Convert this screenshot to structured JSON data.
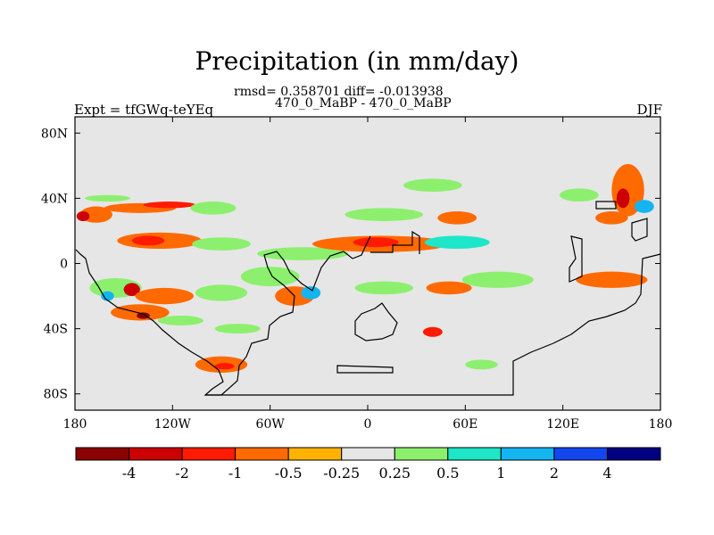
{
  "chart_data": {
    "type": "heatmap",
    "title": "Precipitation (in mm/day)",
    "subtitle": "rmsd= 0.358701 diff= -0.013938",
    "center_string": "470_0_MaBP - 470_0_MaBP",
    "left_string": "Expt = tfGWq-teYEq",
    "right_string": "DJF",
    "x_ticks": [
      "180",
      "120W",
      "60W",
      "0",
      "60E",
      "120E",
      "180"
    ],
    "x_tick_values": [
      -180,
      -120,
      -60,
      0,
      60,
      120,
      180
    ],
    "y_ticks": [
      "80N",
      "40N",
      "0",
      "40S",
      "80S"
    ],
    "y_tick_values": [
      80,
      40,
      0,
      -40,
      -80
    ],
    "xlim": [
      -180,
      180
    ],
    "ylim": [
      -90,
      90
    ],
    "colorbar": {
      "labels": [
        "-4",
        "-2",
        "-1",
        "-0.5",
        "-0.25",
        "0.25",
        "0.5",
        "1",
        "2",
        "4"
      ],
      "colors": [
        "#8b0000",
        "#cc0000",
        "#ff1a00",
        "#ff6a00",
        "#ffb300",
        "#e6e6e6",
        "#8cf06e",
        "#1ee6c8",
        "#14b4f0",
        "#1446f0",
        "#000080"
      ]
    },
    "blobs": [
      {
        "lon": -140,
        "lat": 34,
        "rx": 22,
        "ry": 3,
        "level": "-0.5"
      },
      {
        "lon": -122,
        "lat": 36,
        "rx": 16,
        "ry": 2,
        "level": "-1"
      },
      {
        "lon": -167,
        "lat": 30,
        "rx": 10,
        "ry": 5,
        "level": "-0.5"
      },
      {
        "lon": -175,
        "lat": 29,
        "rx": 4,
        "ry": 3,
        "level": "-2"
      },
      {
        "lon": -95,
        "lat": 34,
        "rx": 14,
        "ry": 4,
        "level": "0.25"
      },
      {
        "lon": -160,
        "lat": 40,
        "rx": 14,
        "ry": 2,
        "level": "0.25"
      },
      {
        "lon": -128,
        "lat": 14,
        "rx": 26,
        "ry": 5,
        "level": "-0.5"
      },
      {
        "lon": -135,
        "lat": 14,
        "rx": 10,
        "ry": 3,
        "level": "-1"
      },
      {
        "lon": -90,
        "lat": 12,
        "rx": 18,
        "ry": 4,
        "level": "0.25"
      },
      {
        "lon": -40,
        "lat": 6,
        "rx": 28,
        "ry": 4,
        "level": "0.25"
      },
      {
        "lon": 8,
        "lat": 12,
        "rx": 42,
        "ry": 5,
        "level": "-0.5"
      },
      {
        "lon": 5,
        "lat": 13,
        "rx": 14,
        "ry": 3,
        "level": "-1"
      },
      {
        "lon": 55,
        "lat": 13,
        "rx": 20,
        "ry": 4,
        "level": "0.5"
      },
      {
        "lon": 10,
        "lat": 30,
        "rx": 24,
        "ry": 4,
        "level": "0.25"
      },
      {
        "lon": 55,
        "lat": 28,
        "rx": 12,
        "ry": 4,
        "level": "-0.5"
      },
      {
        "lon": 40,
        "lat": 48,
        "rx": 18,
        "ry": 4,
        "level": "0.25"
      },
      {
        "lon": -155,
        "lat": -15,
        "rx": 16,
        "ry": 6,
        "level": "0.25"
      },
      {
        "lon": -145,
        "lat": -16,
        "rx": 5,
        "ry": 4,
        "level": "-2"
      },
      {
        "lon": -160,
        "lat": -20,
        "rx": 4,
        "ry": 3,
        "level": "1"
      },
      {
        "lon": -125,
        "lat": -20,
        "rx": 18,
        "ry": 5,
        "level": "-0.5"
      },
      {
        "lon": -90,
        "lat": -18,
        "rx": 16,
        "ry": 5,
        "level": "0.25"
      },
      {
        "lon": -60,
        "lat": -8,
        "rx": 18,
        "ry": 6,
        "level": "0.25"
      },
      {
        "lon": -45,
        "lat": -20,
        "rx": 12,
        "ry": 6,
        "level": "-0.5"
      },
      {
        "lon": -35,
        "lat": -18,
        "rx": 6,
        "ry": 4,
        "level": "1"
      },
      {
        "lon": 10,
        "lat": -15,
        "rx": 18,
        "ry": 4,
        "level": "0.25"
      },
      {
        "lon": 50,
        "lat": -15,
        "rx": 14,
        "ry": 4,
        "level": "-0.5"
      },
      {
        "lon": 80,
        "lat": -10,
        "rx": 22,
        "ry": 5,
        "level": "0.25"
      },
      {
        "lon": 150,
        "lat": -10,
        "rx": 22,
        "ry": 5,
        "level": "-0.5"
      },
      {
        "lon": -140,
        "lat": -30,
        "rx": 18,
        "ry": 5,
        "level": "-0.5"
      },
      {
        "lon": -138,
        "lat": -32,
        "rx": 4,
        "ry": 2,
        "level": "-4"
      },
      {
        "lon": -115,
        "lat": -35,
        "rx": 14,
        "ry": 3,
        "level": "0.25"
      },
      {
        "lon": -80,
        "lat": -40,
        "rx": 14,
        "ry": 3,
        "level": "0.25"
      },
      {
        "lon": 40,
        "lat": -42,
        "rx": 6,
        "ry": 3,
        "level": "-1"
      },
      {
        "lon": -90,
        "lat": -62,
        "rx": 16,
        "ry": 5,
        "level": "-0.5"
      },
      {
        "lon": -88,
        "lat": -63,
        "rx": 6,
        "ry": 2,
        "level": "-1"
      },
      {
        "lon": 70,
        "lat": -62,
        "rx": 10,
        "ry": 3,
        "level": "0.25"
      },
      {
        "lon": 160,
        "lat": 45,
        "rx": 10,
        "ry": 16,
        "level": "-0.5"
      },
      {
        "lon": 157,
        "lat": 40,
        "rx": 4,
        "ry": 6,
        "level": "-2"
      },
      {
        "lon": 170,
        "lat": 35,
        "rx": 6,
        "ry": 4,
        "level": "1"
      },
      {
        "lon": 130,
        "lat": 42,
        "rx": 12,
        "ry": 4,
        "level": "0.25"
      },
      {
        "lon": 150,
        "lat": 28,
        "rx": 10,
        "ry": 4,
        "level": "-0.5"
      }
    ]
  }
}
